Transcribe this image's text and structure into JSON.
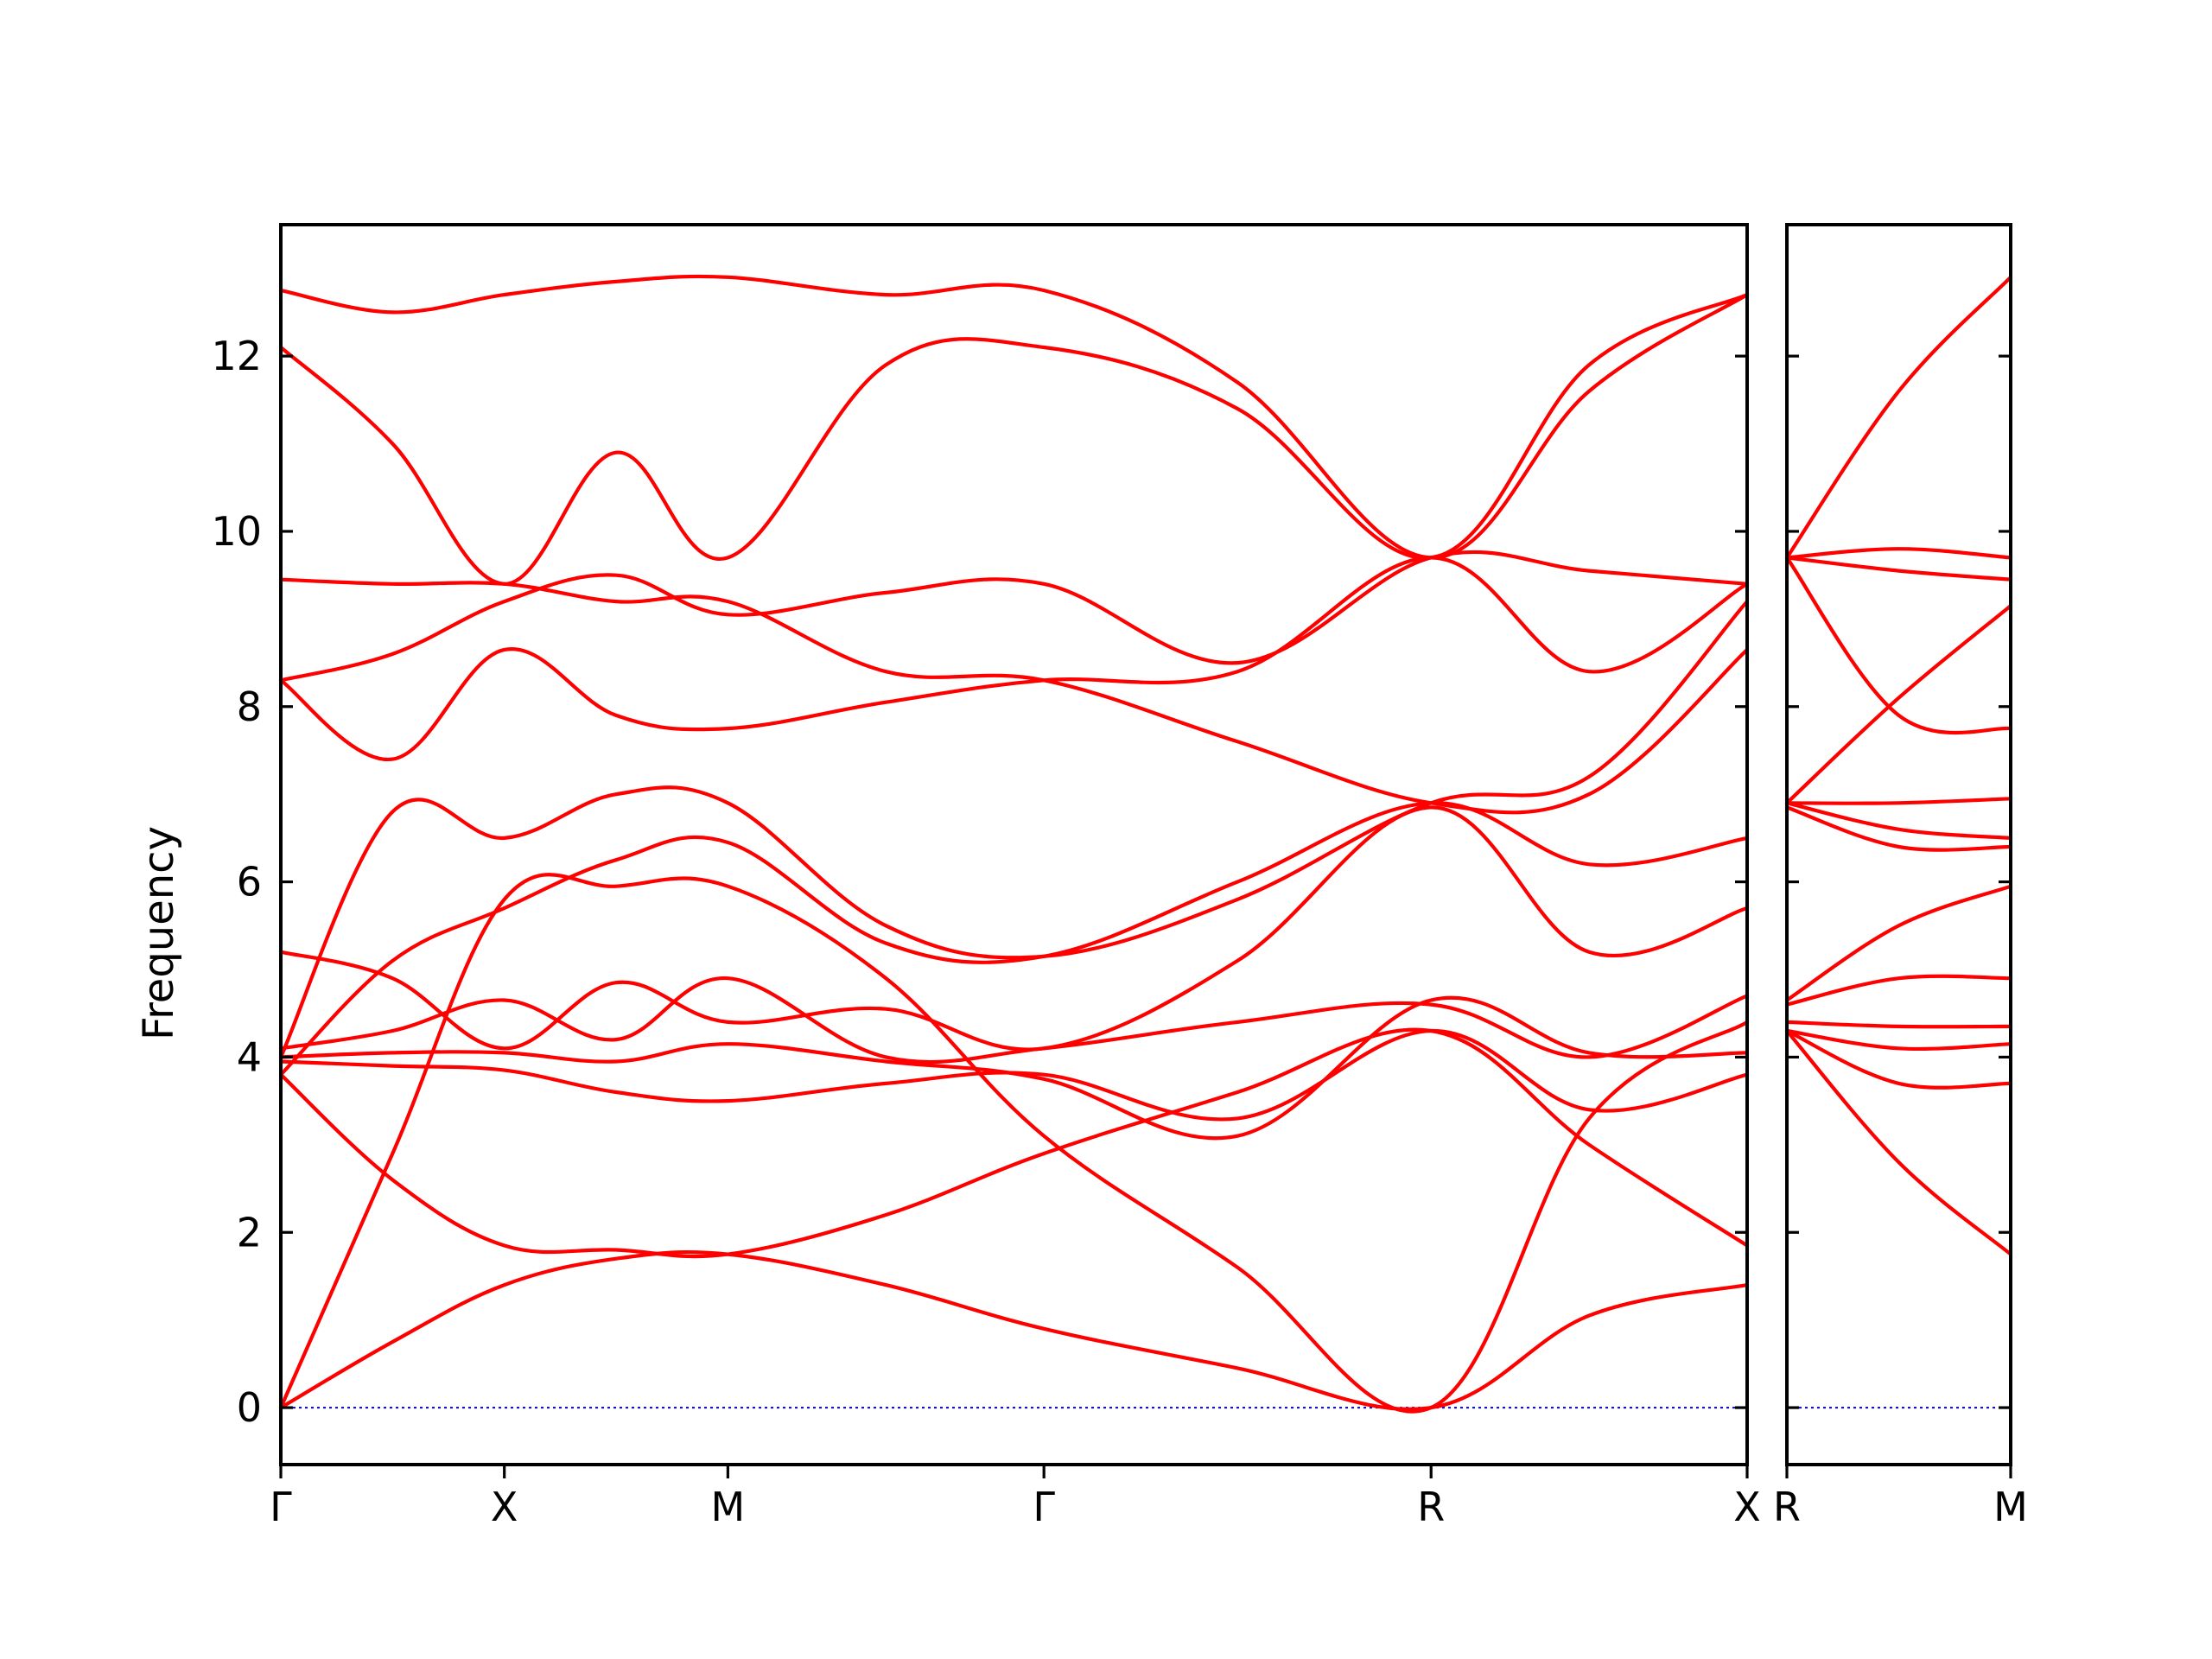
{
  "chart_data": {
    "type": "line",
    "ylabel": "Frequency",
    "ylim": [
      -0.65,
      13.5
    ],
    "yticks": [
      0,
      2,
      4,
      6,
      8,
      10,
      12
    ],
    "colors": {
      "bands": "#ff0000",
      "zero_line": "#0000cc",
      "axes": "#000000"
    },
    "grid": false,
    "panels": [
      {
        "name": "main",
        "xticks": [
          "Γ",
          "X",
          "M",
          "Γ",
          "R",
          "X"
        ],
        "x_segment_lengths": [
          1,
          1,
          1.414,
          1.732,
          1.414
        ],
        "series": [
          {
            "x": [
              0,
              0.5,
              1,
              1.5,
              2,
              2.5,
              3,
              3.5,
              4,
              4.5,
              5
            ],
            "values": [
              0,
              0.75,
              1.4,
              1.7,
              1.75,
              1.4,
              0.9,
              0.45,
              0,
              1.05,
              1.4
            ]
          },
          {
            "x": [
              0,
              0.5,
              1,
              1.5,
              2,
              2.5,
              3,
              3.5,
              4,
              4.5,
              5
            ],
            "values": [
              0,
              2.9,
              5.8,
              5.95,
              5.95,
              4.9,
              3.1,
              1.6,
              0,
              3.3,
              4.4
            ]
          },
          {
            "x": [
              0,
              0.5,
              1,
              1.5,
              2,
              2.5,
              3,
              3.5,
              4,
              4.5,
              5
            ],
            "values": [
              3.8,
              2.6,
              1.85,
              1.8,
              1.75,
              2.2,
              2.9,
              3.6,
              4.3,
              3.0,
              1.85
            ]
          },
          {
            "x": [
              0,
              0.5,
              1,
              1.5,
              2,
              2.5,
              3,
              3.5,
              4,
              4.5,
              5
            ],
            "values": [
              3.95,
              3.9,
              3.85,
              3.6,
              3.5,
              3.7,
              3.8,
              3.3,
              4.3,
              3.4,
              3.8
            ]
          },
          {
            "x": [
              0,
              0.5,
              1,
              1.5,
              2,
              2.5,
              3,
              3.5,
              4,
              4.5,
              5
            ],
            "values": [
              4.0,
              4.05,
              4.05,
              3.95,
              4.15,
              3.95,
              3.75,
              3.1,
              4.65,
              4.05,
              4.05
            ]
          },
          {
            "x": [
              0,
              0.5,
              1,
              1.5,
              2,
              2.5,
              3,
              3.5,
              4,
              4.5,
              5
            ],
            "values": [
              4.1,
              4.3,
              4.65,
              4.2,
              4.9,
              4.0,
              4.1,
              4.4,
              4.6,
              4.0,
              4.7
            ]
          },
          {
            "x": [
              0,
              0.5,
              1,
              1.5,
              2,
              2.5,
              3,
              3.5,
              4,
              4.5,
              5
            ],
            "values": [
              5.2,
              4.9,
              4.1,
              4.85,
              4.4,
              4.55,
              4.1,
              5.1,
              6.85,
              5.2,
              5.7
            ]
          },
          {
            "x": [
              0,
              0.5,
              1,
              1.5,
              2,
              2.5,
              3,
              3.5,
              4,
              4.5,
              5
            ],
            "values": [
              3.8,
              5.1,
              5.7,
              6.25,
              6.45,
              5.3,
              5.15,
              6.0,
              6.9,
              6.2,
              6.5
            ]
          },
          {
            "x": [
              0,
              0.5,
              1,
              1.5,
              2,
              2.5,
              3,
              3.5,
              4,
              4.5,
              5
            ],
            "values": [
              4.0,
              6.8,
              6.5,
              7.0,
              6.9,
              5.5,
              5.15,
              5.8,
              6.9,
              7.2,
              9.2
            ]
          },
          {
            "x": [
              0,
              0.5,
              1,
              1.5,
              2,
              2.5,
              3,
              3.5,
              4,
              4.5,
              5
            ],
            "values": [
              8.3,
              7.4,
              8.65,
              7.9,
              7.75,
              8.05,
              8.3,
              8.4,
              9.7,
              8.4,
              9.4
            ]
          },
          {
            "x": [
              0,
              0.5,
              1,
              1.5,
              2,
              2.5,
              3,
              3.5,
              4,
              4.5,
              5
            ],
            "values": [
              8.3,
              8.6,
              9.2,
              9.5,
              9.05,
              9.3,
              9.4,
              8.5,
              9.7,
              9.55,
              9.4
            ]
          },
          {
            "x": [
              0,
              0.5,
              1,
              1.5,
              2,
              2.5,
              3,
              3.5,
              4,
              4.5,
              5
            ],
            "values": [
              9.45,
              9.4,
              9.4,
              9.2,
              9.2,
              8.4,
              8.3,
              7.6,
              6.9,
              7.0,
              8.65
            ]
          },
          {
            "x": [
              0,
              0.5,
              1,
              1.5,
              2,
              2.5,
              3,
              3.5,
              4,
              4.5,
              5
            ],
            "values": [
              12.75,
              12.5,
              12.7,
              12.85,
              12.9,
              12.7,
              12.75,
              11.7,
              9.7,
              11.6,
              12.7
            ]
          },
          {
            "x": [
              0,
              0.5,
              1,
              1.5,
              2,
              2.5,
              3,
              3.5,
              4,
              4.5,
              5
            ],
            "values": [
              12.1,
              11.0,
              9.4,
              10.9,
              9.7,
              11.9,
              12.1,
              11.4,
              9.7,
              11.9,
              12.7
            ]
          }
        ]
      },
      {
        "name": "R-M",
        "xticks": [
          "R",
          "M"
        ],
        "series": [
          {
            "x": [
              0,
              0.5,
              1
            ],
            "values": [
              9.7,
              11.6,
              12.9
            ]
          },
          {
            "x": [
              0,
              0.5,
              1
            ],
            "values": [
              9.7,
              9.8,
              9.7
            ]
          },
          {
            "x": [
              0,
              0.5,
              1
            ],
            "values": [
              9.7,
              9.55,
              9.45
            ]
          },
          {
            "x": [
              0,
              0.5,
              1
            ],
            "values": [
              9.7,
              7.9,
              7.75
            ]
          },
          {
            "x": [
              0,
              0.5,
              1
            ],
            "values": [
              6.9,
              8.1,
              9.15
            ]
          },
          {
            "x": [
              0,
              0.5,
              1
            ],
            "values": [
              6.9,
              6.9,
              6.95
            ]
          },
          {
            "x": [
              0,
              0.5,
              1
            ],
            "values": [
              6.9,
              6.6,
              6.5
            ]
          },
          {
            "x": [
              0,
              0.5,
              1
            ],
            "values": [
              6.85,
              6.4,
              6.4
            ]
          },
          {
            "x": [
              0,
              0.5,
              1
            ],
            "values": [
              4.65,
              5.5,
              5.95
            ]
          },
          {
            "x": [
              0,
              0.5,
              1
            ],
            "values": [
              4.6,
              4.9,
              4.9
            ]
          },
          {
            "x": [
              0,
              0.5,
              1
            ],
            "values": [
              4.4,
              4.35,
              4.35
            ]
          },
          {
            "x": [
              0,
              0.5,
              1
            ],
            "values": [
              4.3,
              4.1,
              4.15
            ]
          },
          {
            "x": [
              0,
              0.5,
              1
            ],
            "values": [
              4.3,
              3.7,
              3.7
            ]
          },
          {
            "x": [
              0,
              0.5,
              1
            ],
            "values": [
              4.3,
              2.8,
              1.75
            ]
          }
        ]
      }
    ]
  }
}
